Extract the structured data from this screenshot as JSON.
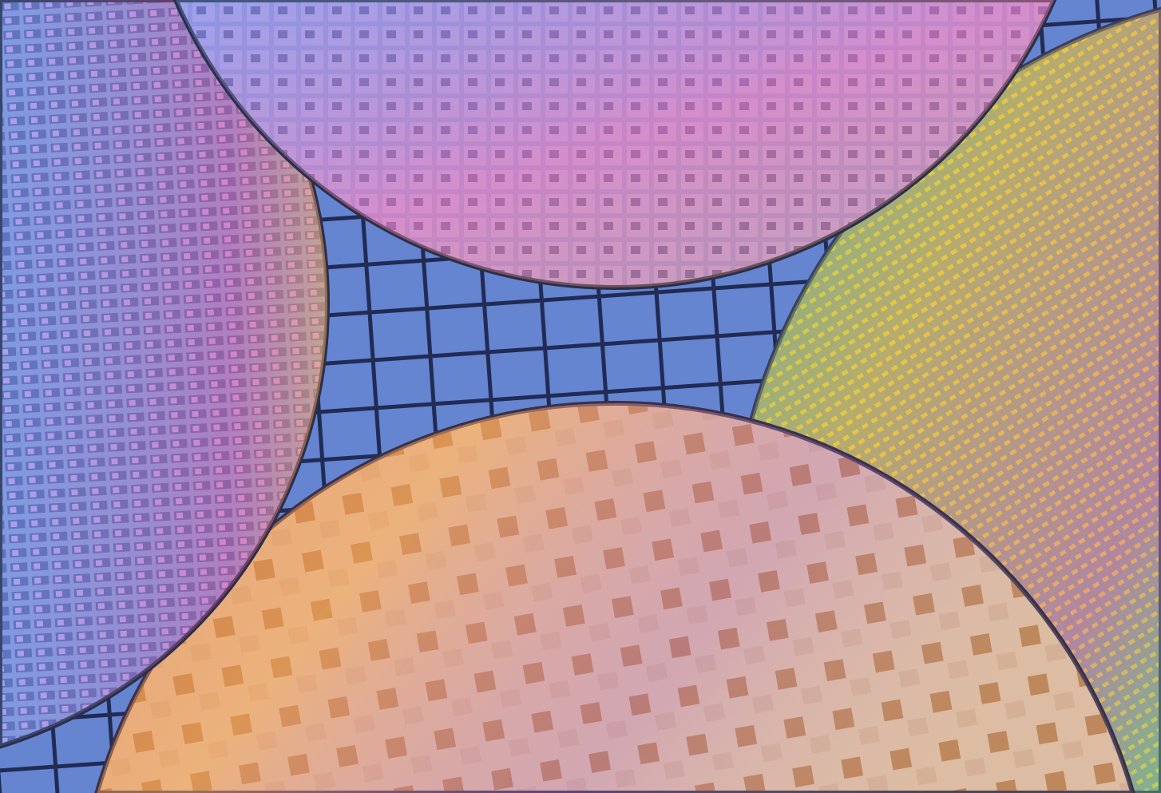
{
  "scene": {
    "subject": "silicon-wafers",
    "colors": {
      "background_grid": "#5a7fc4",
      "top_wafer": "#8c7fd0",
      "left_wafer": "#7d8fd8",
      "bottom_wafer": "#d9a47a",
      "right_wafer": "#9aa07a",
      "highlight_pink": "#ff7fb0",
      "highlight_orange": "#ffb050"
    }
  }
}
